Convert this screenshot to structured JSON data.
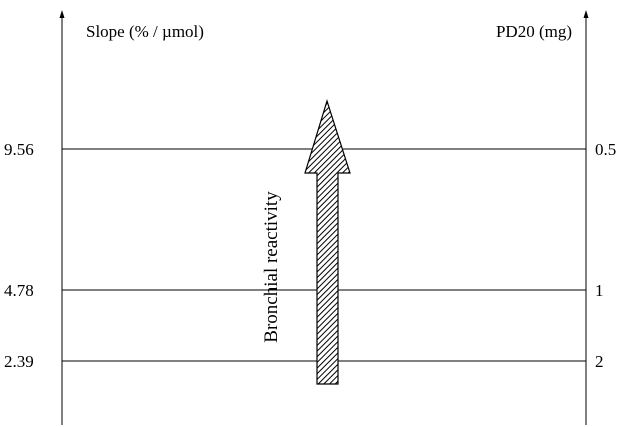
{
  "left_axis": {
    "title": "Slope (% / µmol)",
    "ticks": [
      {
        "label": "9.56"
      },
      {
        "label": "4.78"
      },
      {
        "label": "2.39"
      }
    ]
  },
  "right_axis": {
    "title": "PD20 (mg)",
    "ticks": [
      {
        "label": "0.5"
      },
      {
        "label": "1"
      },
      {
        "label": "2"
      }
    ]
  },
  "arrow": {
    "label": "Bronchial reactivity",
    "direction": "up",
    "fill": "hatched"
  },
  "colors": {
    "line": "#000000",
    "background": "#ffffff"
  }
}
